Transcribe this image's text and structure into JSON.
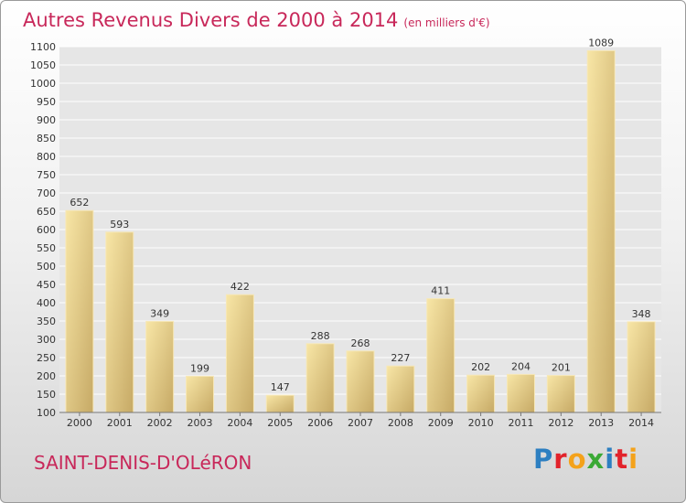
{
  "header": {
    "title": "Autres Revenus Divers de 2000 à 2014",
    "subtitle": "(en milliers d'€)"
  },
  "footer": {
    "city": "SAINT-DENIS-D'OLéRON",
    "logo_letters": [
      "P",
      "r",
      "o",
      "x",
      "i",
      "t",
      "i"
    ],
    "logo_colors": [
      "#2d7fc1",
      "#e2232b",
      "#f4a21b",
      "#3aa935",
      "#2d7fc1",
      "#e2232b",
      "#f4a21b"
    ]
  },
  "colors": {
    "accent": "#c8285a",
    "bar_light": "#f5df9a",
    "bar_dark": "#c9ad6a",
    "grid": "#ffffff"
  },
  "chart_data": {
    "type": "bar",
    "categories": [
      "2000",
      "2001",
      "2002",
      "2003",
      "2004",
      "2005",
      "2006",
      "2007",
      "2008",
      "2009",
      "2010",
      "2011",
      "2012",
      "2013",
      "2014"
    ],
    "values": [
      652,
      593,
      349,
      199,
      422,
      147,
      288,
      268,
      227,
      411,
      202,
      204,
      201,
      1089,
      348
    ],
    "title": "Autres Revenus Divers de 2000 à 2014",
    "xlabel": "",
    "ylabel": "",
    "ylim": [
      100,
      1100
    ],
    "yticks": [
      100,
      150,
      200,
      250,
      300,
      350,
      400,
      450,
      500,
      550,
      600,
      650,
      700,
      750,
      800,
      850,
      900,
      950,
      1000,
      1050,
      1100
    ],
    "grid": true,
    "legend": "none"
  }
}
